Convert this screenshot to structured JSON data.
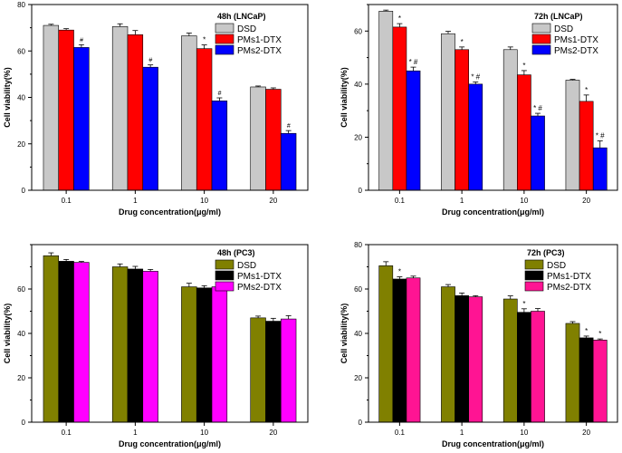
{
  "chart_data": [
    {
      "type": "bar",
      "title": "48h (LNCaP)",
      "xlabel": "Drug concentration(μg/ml)",
      "ylabel": "Cell viability(%)",
      "categories": [
        "0.1",
        "1",
        "10",
        "20"
      ],
      "ylim": [
        0,
        80
      ],
      "yticks": [
        "0",
        "20",
        "40",
        "60",
        "80"
      ],
      "series": [
        {
          "name": "DSD",
          "color": "#c8c8c8",
          "values": [
            71,
            70.5,
            66.5,
            44.5
          ],
          "errors": [
            0.5,
            1.2,
            1.2,
            0.4
          ],
          "annotations": [
            "",
            "",
            "",
            ""
          ]
        },
        {
          "name": "PMs1-DTX",
          "color": "#ff0000",
          "values": [
            69,
            67,
            61,
            43.5
          ],
          "errors": [
            0.6,
            1.8,
            1.6,
            0.6
          ],
          "annotations": [
            "",
            "",
            "*",
            ""
          ]
        },
        {
          "name": "PMs2-DTX",
          "color": "#0000ff",
          "values": [
            61.5,
            53,
            38.5,
            24.5
          ],
          "errors": [
            1.2,
            1.0,
            1.3,
            1.2
          ],
          "annotations": [
            "#",
            "#",
            "#",
            "#"
          ]
        }
      ]
    },
    {
      "type": "bar",
      "title": "72h (LNCaP)",
      "xlabel": "Drug concentration(μg/ml)",
      "ylabel": "Cell viability(%)",
      "categories": [
        "0.1",
        "1",
        "10",
        "20"
      ],
      "ylim": [
        0,
        70
      ],
      "yticks": [
        "0",
        "20",
        "40",
        "60"
      ],
      "series": [
        {
          "name": "DSD",
          "color": "#c8c8c8",
          "values": [
            67.5,
            59,
            53,
            41.5
          ],
          "errors": [
            0.4,
            0.9,
            1.0,
            0.3
          ],
          "annotations": [
            "",
            "",
            "",
            ""
          ]
        },
        {
          "name": "PMs1-DTX",
          "color": "#ff0000",
          "values": [
            61.5,
            53,
            43.5,
            33.5
          ],
          "errors": [
            1.3,
            1.0,
            1.6,
            2.4
          ],
          "annotations": [
            "*",
            "*",
            "*",
            "*"
          ]
        },
        {
          "name": "PMs2-DTX",
          "color": "#0000ff",
          "values": [
            45,
            40,
            28,
            16
          ],
          "errors": [
            1.4,
            0.8,
            1.0,
            2.6
          ],
          "annotations": [
            "* #",
            "* #",
            "* #",
            "* #"
          ]
        }
      ]
    },
    {
      "type": "bar",
      "title": "48h (PC3)",
      "xlabel": "Drug concentration(μg/ml)",
      "ylabel": "Cell viability(%)",
      "categories": [
        "0.1",
        "1",
        "10",
        "20"
      ],
      "ylim": [
        0,
        80
      ],
      "yticks": [
        "0",
        "20",
        "40",
        "60"
      ],
      "series": [
        {
          "name": "DSD",
          "color": "#808000",
          "values": [
            75,
            70,
            61,
            47
          ],
          "errors": [
            1.3,
            1.3,
            1.6,
            0.8
          ],
          "annotations": [
            "",
            "",
            "",
            ""
          ]
        },
        {
          "name": "PMs1-DTX",
          "color": "#000000",
          "values": [
            72.5,
            69,
            60.5,
            45.5
          ],
          "errors": [
            0.8,
            1.2,
            1.0,
            1.3
          ],
          "annotations": [
            "",
            "",
            "",
            ""
          ]
        },
        {
          "name": "PMs2-DTX",
          "color": "#ff00ff",
          "values": [
            72,
            68,
            61,
            46.5
          ],
          "errors": [
            0.4,
            0.8,
            1.0,
            1.5
          ],
          "annotations": [
            "",
            "",
            "",
            ""
          ]
        }
      ]
    },
    {
      "type": "bar",
      "title": "72h (PC3)",
      "xlabel": "Drug concentration(μg/ml)",
      "ylabel": "Cell viability(%)",
      "categories": [
        "0.1",
        "1",
        "10",
        "20"
      ],
      "ylim": [
        0,
        80
      ],
      "yticks": [
        "0",
        "20",
        "40",
        "60",
        "80"
      ],
      "series": [
        {
          "name": "DSD",
          "color": "#808000",
          "values": [
            70.5,
            61,
            55.5,
            44.5
          ],
          "errors": [
            1.8,
            1.0,
            1.4,
            0.8
          ],
          "annotations": [
            "",
            "",
            "",
            ""
          ]
        },
        {
          "name": "PMs1-DTX",
          "color": "#000000",
          "values": [
            64.5,
            57,
            49.5,
            38
          ],
          "errors": [
            1.0,
            1.2,
            1.6,
            0.8
          ],
          "annotations": [
            "*",
            "",
            "*",
            "*"
          ]
        },
        {
          "name": "PMs2-DTX",
          "color": "#ff1493",
          "values": [
            65,
            56.5,
            50,
            37
          ],
          "errors": [
            0.8,
            0.5,
            1.2,
            0.5
          ],
          "annotations": [
            "",
            "",
            "",
            "*"
          ]
        }
      ]
    }
  ]
}
